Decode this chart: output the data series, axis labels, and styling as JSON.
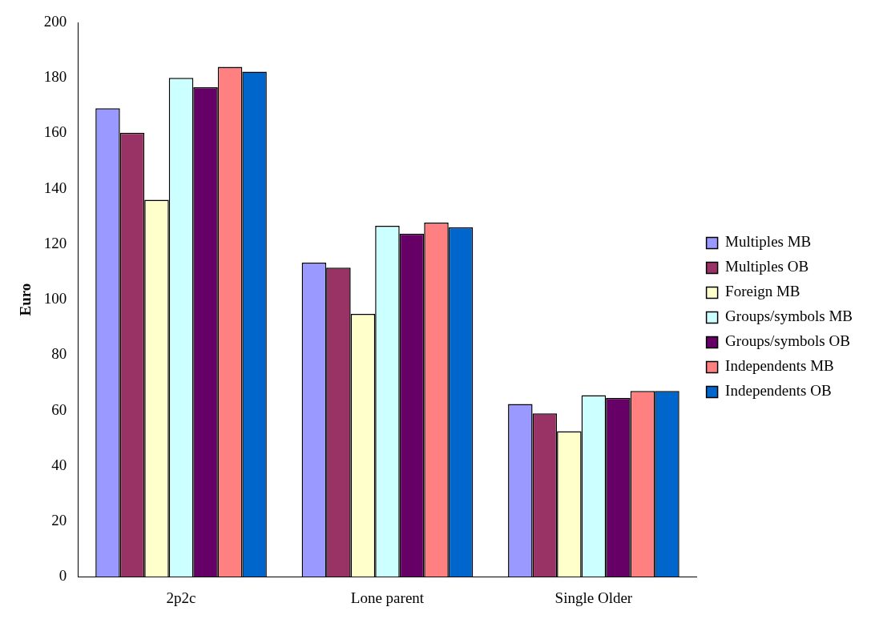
{
  "chart_data": {
    "type": "bar",
    "ylabel": "Euro",
    "categories": [
      "2p2c",
      "Lone parent",
      "Single Older"
    ],
    "series": [
      {
        "name": "Multiples MB",
        "color": "#9999ff",
        "values": [
          169,
          113.3,
          62.3
        ]
      },
      {
        "name": "Multiples OB",
        "color": "#993366",
        "values": [
          160.2,
          111.5,
          58.9
        ]
      },
      {
        "name": "Foreign MB",
        "color": "#ffffcc",
        "values": [
          136,
          94.8,
          52.5
        ]
      },
      {
        "name": "Groups/symbols MB",
        "color": "#ccffff",
        "values": [
          180,
          126.6,
          65.5
        ]
      },
      {
        "name": "Groups/symbols OB",
        "color": "#660066",
        "values": [
          176.6,
          123.8,
          64.5
        ]
      },
      {
        "name": "Independents MB",
        "color": "#ff8080",
        "values": [
          184,
          127.8,
          67
        ]
      },
      {
        "name": "Independents OB",
        "color": "#0066cc",
        "values": [
          182.2,
          126.1,
          67
        ]
      }
    ],
    "ylim": [
      0,
      200
    ],
    "yticks": [
      0,
      20,
      40,
      60,
      80,
      100,
      120,
      140,
      160,
      180,
      200
    ],
    "grid": false,
    "legend": "right"
  }
}
